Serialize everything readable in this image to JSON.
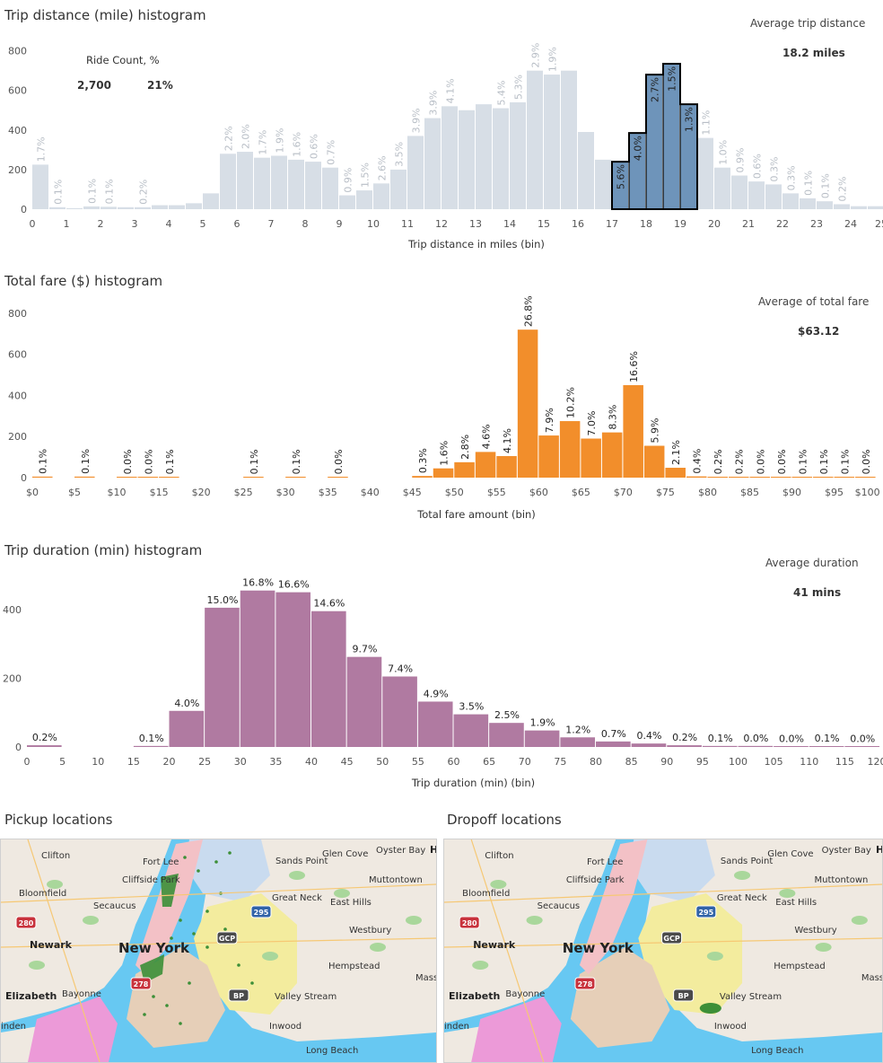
{
  "distance": {
    "title": "Trip distance (mile) histogram",
    "avg_label": "Average trip distance",
    "avg_value": "18.2 miles",
    "legend": {
      "header": "Ride Count, %",
      "count": "2,700",
      "pct": "21%"
    },
    "colors": {
      "bar": "#d7dee6",
      "highlight": "#6e94ba",
      "outline": "#000000",
      "label": "#b8bec6",
      "highlight_label": "#222222"
    }
  },
  "fare": {
    "title": "Total fare ($) histogram",
    "avg_label": "Average of total fare",
    "avg_value": "$63.12",
    "colors": {
      "bar": "#f28e2b",
      "label": "#222222"
    }
  },
  "duration": {
    "title": "Trip duration (min) histogram",
    "avg_label": "Average duration",
    "avg_value": "41 mins",
    "colors": {
      "bar": "#b07aa1",
      "label": "#222222"
    }
  },
  "maps": {
    "pickup_title": "Pickup locations",
    "dropoff_title": "Dropoff locations",
    "place_labels": {
      "clifton": "Clifton",
      "fort_lee": "Fort Lee",
      "cliffside_park": "Cliffside Park",
      "glen_cove": "Glen Cove",
      "oyster_bay": "Oyster Bay",
      "sands_point": "Sands Point",
      "muttontown": "Muttontown",
      "bloomfield": "Bloomfield",
      "secaucus": "Secaucus",
      "great_neck": "Great Neck",
      "east_hills": "East Hills",
      "westbury": "Westbury",
      "newark": "Newark",
      "new_york": "New York",
      "hempstead": "Hempstead",
      "elizabeth": "Elizabeth",
      "bayonne": "Bayonne",
      "valley_stream": "Valley Stream",
      "inwood": "Inwood",
      "long_beach": "Long Beach",
      "linden": "inden",
      "mass": "Mass",
      "h": "H",
      "shield_280": "280",
      "shield_278": "278",
      "shield_295": "295",
      "shield_gcp": "GCP",
      "shield_bp": "BP"
    },
    "colors": {
      "water": "#67c8f2",
      "land": "#efe9e1",
      "manhattan": "#f3c1c6",
      "bronx": "#c9dbef",
      "queens": "#f3ec9e",
      "brooklyn": "#e6cfb8",
      "staten": "#ec9ad8",
      "park": "#a9d79b",
      "pickup": "#3c8f37"
    }
  },
  "chart_data": [
    {
      "type": "bar",
      "title": "Trip distance (mile) histogram",
      "xlabel": "Trip distance in miles  (bin)",
      "ylabel": "",
      "x_ticks": [
        0,
        1,
        2,
        3,
        4,
        5,
        6,
        7,
        8,
        9,
        10,
        11,
        12,
        13,
        14,
        15,
        16,
        17,
        18,
        19,
        20,
        21,
        22,
        23,
        24,
        25
      ],
      "y_ticks": [
        0,
        200,
        400,
        600,
        800
      ],
      "ylim": [
        0,
        830
      ],
      "bin_width": 0.5,
      "x": [
        0,
        0.5,
        1,
        1.5,
        2,
        2.5,
        3,
        3.5,
        4,
        4.5,
        5,
        5.5,
        6,
        6.5,
        7,
        7.5,
        8,
        8.5,
        9,
        9.5,
        10,
        10.5,
        11,
        11.5,
        12,
        12.5,
        13,
        13.5,
        14,
        14.5,
        15,
        15.5,
        16,
        16.5,
        17,
        17.5,
        18,
        18.5,
        19,
        19.5,
        20,
        20.5,
        21,
        21.5,
        22,
        22.5,
        23,
        23.5,
        24,
        24.5,
        25
      ],
      "values": [
        225,
        10,
        5,
        14,
        12,
        10,
        10,
        20,
        20,
        30,
        80,
        280,
        290,
        260,
        270,
        250,
        240,
        210,
        70,
        95,
        130,
        200,
        370,
        460,
        520,
        500,
        530,
        510,
        540,
        700,
        680,
        700,
        390,
        250,
        240,
        385,
        680,
        735,
        530,
        360,
        210,
        170,
        140,
        125,
        80,
        55,
        40,
        25,
        15,
        15,
        25
      ],
      "labels": [
        "1.7%",
        "0.1%",
        "",
        "0.1%",
        "0.1%",
        "",
        "0.2%",
        "",
        "",
        "",
        "",
        "2.2%",
        "2.0%",
        "1.7%",
        "1.9%",
        "1.6%",
        "0.6%",
        "0.7%",
        "0.9%",
        "1.5%",
        "2.6%",
        "3.5%",
        "3.9%",
        "3.9%",
        "4.1%",
        "",
        "",
        "5.4%",
        "5.3%",
        "2.9%",
        "1.9%",
        "",
        "",
        "",
        "5.6%",
        "4.0%",
        "2.7%",
        "1.5%",
        "1.3%",
        "1.1%",
        "1.0%",
        "0.9%",
        "0.6%",
        "0.3%",
        "0.3%",
        "0.1%",
        "0.1%",
        "0.2%",
        "",
        "",
        ""
      ],
      "highlight_range": [
        17,
        19.5
      ]
    },
    {
      "type": "bar",
      "title": "Total fare ($) histogram",
      "xlabel": "Total fare amount (bin)",
      "ylabel": "",
      "x_ticks": [
        "$0",
        "$5",
        "$10",
        "$15",
        "$20",
        "$25",
        "$30",
        "$35",
        "$40",
        "$45",
        "$50",
        "$55",
        "$60",
        "$65",
        "$70",
        "$75",
        "$80",
        "$85",
        "$90",
        "$95",
        "$100"
      ],
      "y_ticks": [
        0,
        200,
        400,
        600,
        800
      ],
      "ylim": [
        0,
        830
      ],
      "bin_width": 2.5,
      "x": [
        0,
        5,
        10,
        12.5,
        15,
        25,
        30,
        35,
        45,
        47.5,
        50,
        52.5,
        55,
        57.5,
        60,
        62.5,
        65,
        67.5,
        70,
        72.5,
        75,
        77.5,
        80,
        82.5,
        85,
        87.5,
        90,
        92.5,
        95,
        97.5
      ],
      "values": [
        5,
        5,
        3,
        3,
        3,
        3,
        3,
        3,
        8,
        45,
        75,
        125,
        105,
        720,
        205,
        275,
        190,
        220,
        450,
        155,
        48,
        6,
        3,
        3,
        3,
        3,
        3,
        3,
        3,
        3
      ],
      "labels": [
        "0.1%",
        "0.1%",
        "0.0%",
        "0.0%",
        "0.1%",
        "0.1%",
        "0.1%",
        "0.0%",
        "0.3%",
        "1.6%",
        "2.8%",
        "4.6%",
        "4.1%",
        "26.8%",
        "7.9%",
        "10.2%",
        "7.0%",
        "8.3%",
        "16.6%",
        "5.9%",
        "2.1%",
        "0.4%",
        "0.2%",
        "0.2%",
        "0.0%",
        "0.0%",
        "0.1%",
        "0.1%",
        "0.1%",
        "0.0%"
      ]
    },
    {
      "type": "bar",
      "title": "Trip duration (min) histogram",
      "xlabel": "Trip duration (min) (bin)",
      "ylabel": "",
      "x_ticks": [
        0,
        5,
        10,
        15,
        20,
        25,
        30,
        35,
        40,
        45,
        50,
        55,
        60,
        65,
        70,
        75,
        80,
        85,
        90,
        95,
        100,
        105,
        110,
        115,
        120
      ],
      "y_ticks": [
        0,
        200,
        400
      ],
      "ylim": [
        0,
        470
      ],
      "bin_width": 5,
      "x": [
        0,
        15,
        20,
        25,
        30,
        35,
        40,
        45,
        50,
        55,
        60,
        65,
        70,
        75,
        80,
        85,
        90,
        95,
        100,
        105,
        110,
        115
      ],
      "values": [
        5,
        3,
        105,
        405,
        455,
        450,
        395,
        262,
        205,
        132,
        95,
        70,
        48,
        28,
        16,
        10,
        5,
        3,
        3,
        1,
        2,
        1
      ],
      "labels": [
        "0.2%",
        "0.1%",
        "4.0%",
        "15.0%",
        "16.8%",
        "16.6%",
        "14.6%",
        "9.7%",
        "7.4%",
        "4.9%",
        "3.5%",
        "2.5%",
        "1.9%",
        "1.2%",
        "0.7%",
        "0.4%",
        "0.2%",
        "0.1%",
        "0.0%",
        "0.0%",
        "0.1%",
        "0.0%"
      ]
    }
  ]
}
